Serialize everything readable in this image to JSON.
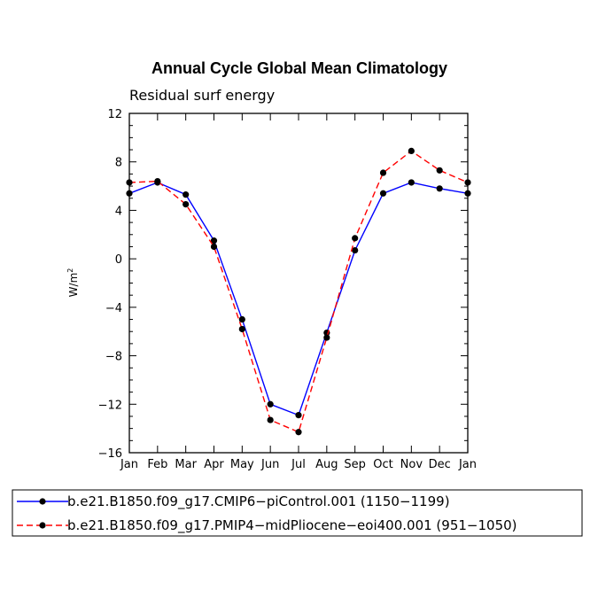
{
  "chart_data": {
    "type": "line",
    "title": "Annual Cycle Global Mean Climatology",
    "subtitle": "Residual surf energy",
    "xlabel": "",
    "ylabel": "W/m",
    "ylabel_sup": "2",
    "categories": [
      "Jan",
      "Feb",
      "Mar",
      "Apr",
      "May",
      "Jun",
      "Jul",
      "Aug",
      "Sep",
      "Oct",
      "Nov",
      "Dec",
      "Jan"
    ],
    "ylim": [
      -16,
      12
    ],
    "yticks": [
      "-16",
      "-12",
      "-8",
      "-4",
      "0",
      "4",
      "8",
      "12"
    ],
    "series": [
      {
        "name": "b.e21.B1850.f09_g17.CMIP6-piControl.001 (1150-1199)",
        "color": "#0000ff",
        "dash": "solid",
        "values": [
          5.4,
          6.3,
          5.3,
          1.5,
          -5.0,
          -12.0,
          -12.9,
          -6.1,
          0.7,
          5.4,
          6.3,
          5.8,
          5.4
        ]
      },
      {
        "name": "b.e21.B1850.f09_g17.PMIP4-midPliocene-eoi400.001 (951-1050)",
        "color": "#ff0000",
        "dash": "dashed",
        "values": [
          6.3,
          6.4,
          4.5,
          1.0,
          -5.8,
          -13.3,
          -14.3,
          -6.5,
          1.7,
          7.1,
          8.9,
          7.3,
          6.3
        ]
      }
    ],
    "legend_position": "bottom"
  }
}
